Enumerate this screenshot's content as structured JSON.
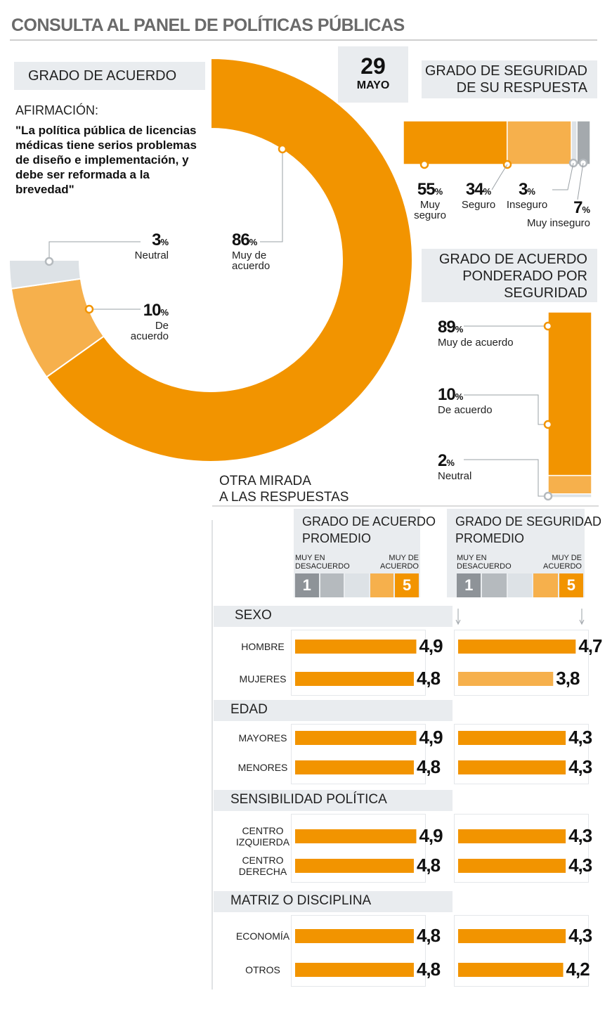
{
  "main_title": "CONSULTA AL PANEL DE POLÍTICAS PÚBLICAS",
  "date": {
    "day": "29",
    "month": "MAYO"
  },
  "agreement_section": {
    "title": "GRADO DE ACUERDO",
    "statement_label": "AFIRMACIÓN:",
    "statement": "\"La política pública de licencias médicas tiene serios problemas de diseño e implementación, y debe ser reformada a la brevedad\""
  },
  "security_section": {
    "title_line1": "GRADO DE SEGURIDAD",
    "title_line2": "DE SU RESPUESTA"
  },
  "weighted_section": {
    "title_line1": "GRADO DE ACUERDO",
    "title_line2": "PONDERADO POR",
    "title_line3": "SEGURIDAD"
  },
  "other_view": {
    "line1": "OTRA MIRADA",
    "line2": "A LAS RESPUESTAS"
  },
  "avg_agree": {
    "title_line1": "GRADO DE ACUERDO",
    "title_line2": "PROMEDIO",
    "low_label_1": "MUY EN",
    "low_label_2": "DESACUERDO",
    "high_label_1": "MUY DE",
    "high_label_2": "ACUERDO",
    "low_num": "1",
    "high_num": "5"
  },
  "avg_secure": {
    "title_line1": "GRADO DE SEGURIDAD",
    "title_line2": "PROMEDIO",
    "low_label_1": "MUY EN",
    "low_label_2": "DESACUERDO",
    "high_label_1": "MUY DE",
    "high_label_2": "ACUERDO",
    "low_num": "1",
    "high_num": "5"
  },
  "colors": {
    "orange": "#f29400",
    "light_orange": "#f6b04c",
    "light_gray": "#dde2e6",
    "gray": "#a4a9ad",
    "dark_gray": "#8e9398",
    "panel": "#e9ecef"
  },
  "chart_data": [
    {
      "type": "pie",
      "title": "GRADO DE ACUERDO",
      "slices": [
        {
          "name": "Muy de acuerdo",
          "pct_label": "86",
          "value": 86
        },
        {
          "name": "De acuerdo",
          "pct_label": "10",
          "value": 10
        },
        {
          "name": "Neutral",
          "pct_label": "3",
          "value": 3
        }
      ],
      "pct_sign": "%"
    },
    {
      "type": "bar",
      "title": "GRADO DE SEGURIDAD DE SU RESPUESTA",
      "stacked": true,
      "segments": [
        {
          "name_line1": "Muy",
          "name_line2": "seguro",
          "pct_label": "55",
          "value": 55
        },
        {
          "name_line1": "Seguro",
          "name_line2": "",
          "pct_label": "34",
          "value": 34
        },
        {
          "name_line1": "Inseguro",
          "name_line2": "",
          "pct_label": "3",
          "value": 3
        },
        {
          "name_line1": "Muy inseguro",
          "name_line2": "",
          "pct_label": "7",
          "value": 7
        }
      ]
    },
    {
      "type": "bar",
      "title": "GRADO DE ACUERDO PONDERADO POR SEGURIDAD",
      "stacked": true,
      "segments": [
        {
          "name": "Muy de acuerdo",
          "pct_label": "89",
          "value": 89
        },
        {
          "name": "De acuerdo",
          "pct_label": "10",
          "value": 10
        },
        {
          "name": "Neutral",
          "pct_label": "2",
          "value": 2
        }
      ]
    },
    {
      "type": "bar",
      "title": "GRADO DE ACUERDO PROMEDIO / GRADO DE SEGURIDAD PROMEDIO",
      "scale": [
        1,
        5
      ],
      "groups": [
        {
          "name": "SEXO",
          "rows": [
            {
              "label_line1": "HOMBRE",
              "label_line2": "",
              "agree": 4.9,
              "agree_label": "4,9",
              "secure": 4.7,
              "secure_label": "4,7"
            },
            {
              "label_line1": "MUJERES",
              "label_line2": "",
              "agree": 4.8,
              "agree_label": "4,8",
              "secure": 3.8,
              "secure_label": "3,8"
            }
          ]
        },
        {
          "name": "EDAD",
          "rows": [
            {
              "label_line1": "MAYORES",
              "label_line2": "",
              "agree": 4.9,
              "agree_label": "4,9",
              "secure": 4.3,
              "secure_label": "4,3"
            },
            {
              "label_line1": "MENORES",
              "label_line2": "",
              "agree": 4.8,
              "agree_label": "4,8",
              "secure": 4.3,
              "secure_label": "4,3"
            }
          ]
        },
        {
          "name": "SENSIBILIDAD POLÍTICA",
          "rows": [
            {
              "label_line1": "CENTRO",
              "label_line2": "IZQUIERDA",
              "agree": 4.9,
              "agree_label": "4,9",
              "secure": 4.3,
              "secure_label": "4,3"
            },
            {
              "label_line1": "CENTRO",
              "label_line2": "DERECHA",
              "agree": 4.8,
              "agree_label": "4,8",
              "secure": 4.3,
              "secure_label": "4,3"
            }
          ]
        },
        {
          "name": "MATRIZ O DISCIPLINA",
          "rows": [
            {
              "label_line1": "ECONOMÍA",
              "label_line2": "",
              "agree": 4.8,
              "agree_label": "4,8",
              "secure": 4.3,
              "secure_label": "4,3"
            },
            {
              "label_line1": "OTROS",
              "label_line2": "",
              "agree": 4.8,
              "agree_label": "4,8",
              "secure": 4.2,
              "secure_label": "4,2"
            }
          ]
        }
      ]
    }
  ]
}
